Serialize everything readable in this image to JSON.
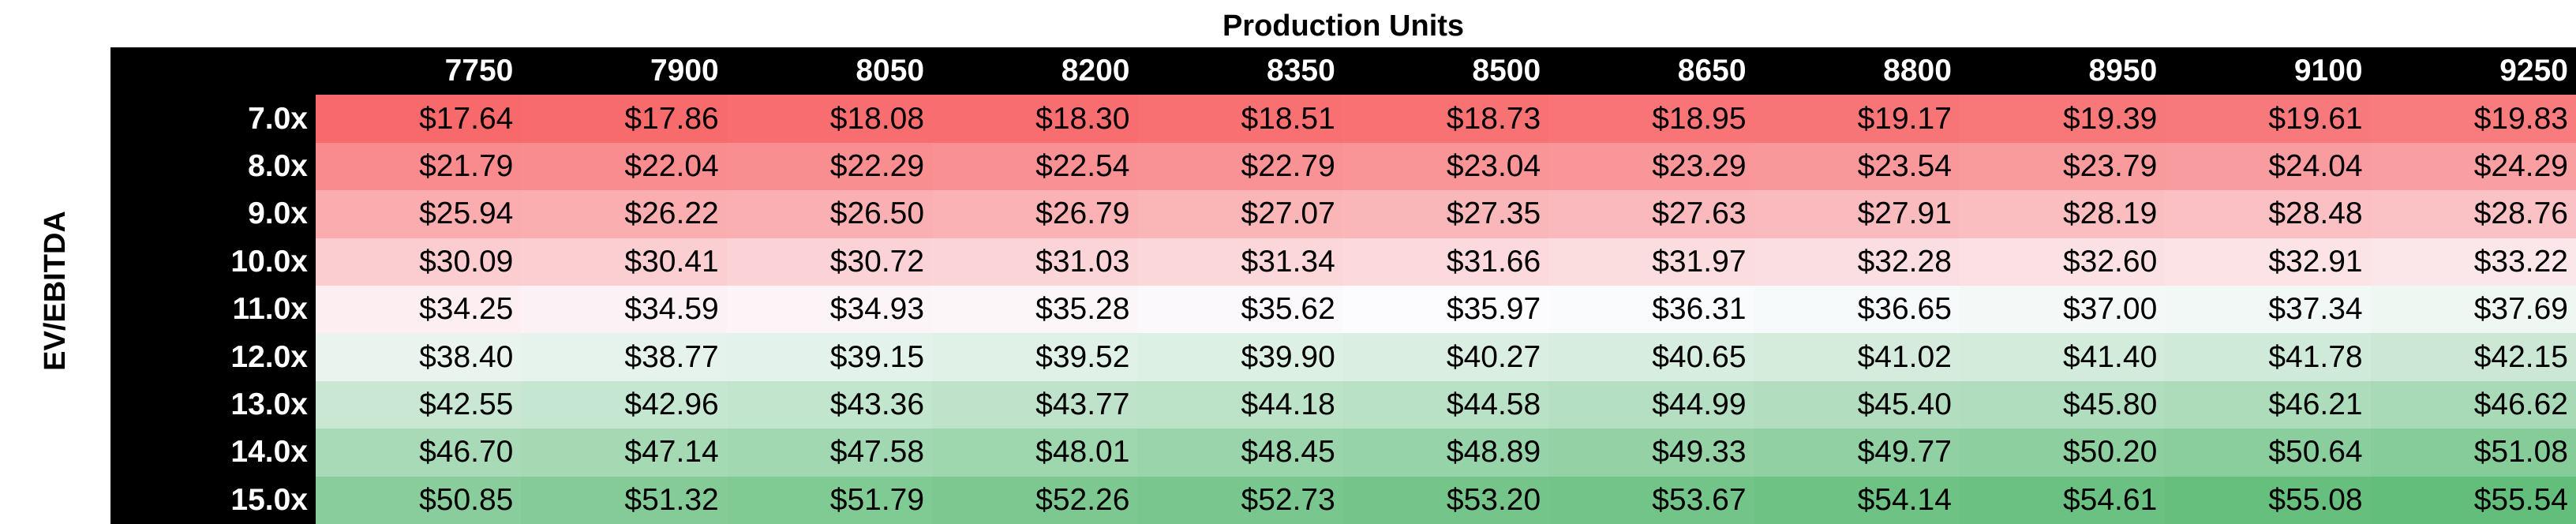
{
  "title_x": "Production Units",
  "title_y": "EV/EBITDA",
  "columns": [
    "7750",
    "7900",
    "8050",
    "8200",
    "8350",
    "8500",
    "8650",
    "8800",
    "8950",
    "9100",
    "9250"
  ],
  "rows": [
    {
      "label": "7.0x",
      "values": [
        "$17.64",
        "$17.86",
        "$18.08",
        "$18.30",
        "$18.51",
        "$18.73",
        "$18.95",
        "$19.17",
        "$19.39",
        "$19.61",
        "$19.83"
      ]
    },
    {
      "label": "8.0x",
      "values": [
        "$21.79",
        "$22.04",
        "$22.29",
        "$22.54",
        "$22.79",
        "$23.04",
        "$23.29",
        "$23.54",
        "$23.79",
        "$24.04",
        "$24.29"
      ]
    },
    {
      "label": "9.0x",
      "values": [
        "$25.94",
        "$26.22",
        "$26.50",
        "$26.79",
        "$27.07",
        "$27.35",
        "$27.63",
        "$27.91",
        "$28.19",
        "$28.48",
        "$28.76"
      ]
    },
    {
      "label": "10.0x",
      "values": [
        "$30.09",
        "$30.41",
        "$30.72",
        "$31.03",
        "$31.34",
        "$31.66",
        "$31.97",
        "$32.28",
        "$32.60",
        "$32.91",
        "$33.22"
      ]
    },
    {
      "label": "11.0x",
      "values": [
        "$34.25",
        "$34.59",
        "$34.93",
        "$35.28",
        "$35.62",
        "$35.97",
        "$36.31",
        "$36.65",
        "$37.00",
        "$37.34",
        "$37.69"
      ]
    },
    {
      "label": "12.0x",
      "values": [
        "$38.40",
        "$38.77",
        "$39.15",
        "$39.52",
        "$39.90",
        "$40.27",
        "$40.65",
        "$41.02",
        "$41.40",
        "$41.78",
        "$42.15"
      ]
    },
    {
      "label": "13.0x",
      "values": [
        "$42.55",
        "$42.96",
        "$43.36",
        "$43.77",
        "$44.18",
        "$44.58",
        "$44.99",
        "$45.40",
        "$45.80",
        "$46.21",
        "$46.62"
      ]
    },
    {
      "label": "14.0x",
      "values": [
        "$46.70",
        "$47.14",
        "$47.58",
        "$48.01",
        "$48.45",
        "$48.89",
        "$49.33",
        "$49.77",
        "$50.20",
        "$50.64",
        "$51.08"
      ]
    },
    {
      "label": "15.0x",
      "values": [
        "$50.85",
        "$51.32",
        "$51.79",
        "$52.26",
        "$52.73",
        "$53.20",
        "$53.67",
        "$54.14",
        "$54.61",
        "$55.08",
        "$55.54"
      ]
    }
  ],
  "colors": {
    "low": "#f8696b",
    "mid": "#fcfcff",
    "high": "#63be7b",
    "header_bg": "#000000",
    "header_text": "#ffffff"
  }
}
